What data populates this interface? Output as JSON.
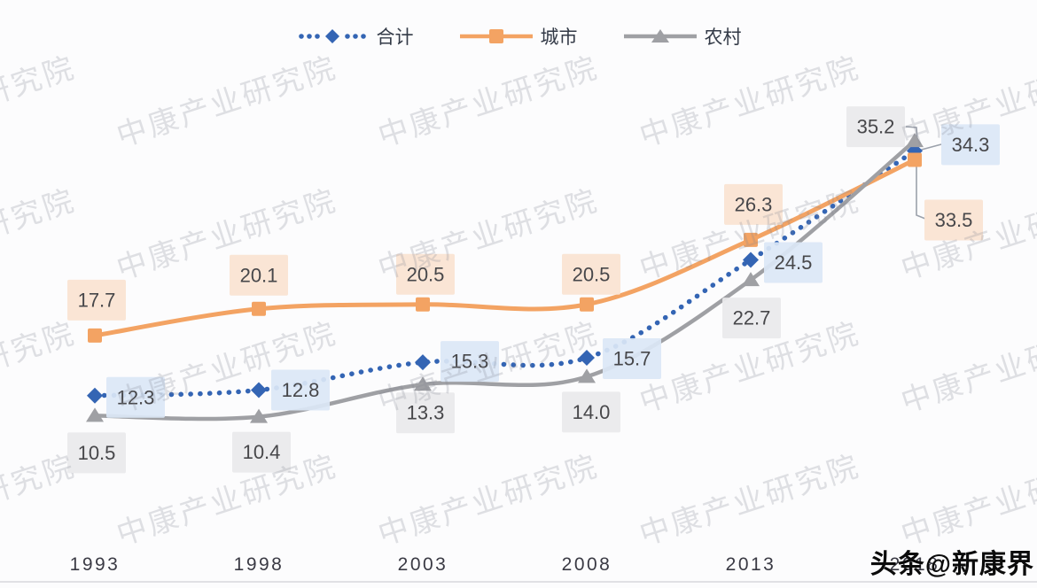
{
  "chart_data": {
    "type": "line",
    "title": "",
    "categories": [
      "1993",
      "1998",
      "2003",
      "2008",
      "2013",
      "2018"
    ],
    "series": [
      {
        "key": "total",
        "name": "合计",
        "color": "#3465b4",
        "marker": "diamond",
        "line_style": "dotted",
        "label_bg": "#dbe7f6",
        "values": [
          12.3,
          12.8,
          15.3,
          15.7,
          24.5,
          34.3
        ]
      },
      {
        "key": "urban",
        "name": "城市",
        "color": "#f3a363",
        "marker": "square",
        "line_style": "solid",
        "label_bg": "#fae3d1",
        "values": [
          17.7,
          20.1,
          20.5,
          20.5,
          26.3,
          33.5
        ]
      },
      {
        "key": "rural",
        "name": "农村",
        "color": "#9fa0a4",
        "marker": "triangle",
        "line_style": "solid",
        "label_bg": "#e9e9eb",
        "values": [
          10.5,
          10.4,
          13.3,
          14.0,
          22.7,
          35.2
        ]
      }
    ],
    "legend_position": "top-center",
    "grid": false,
    "data_labels": true,
    "label_text_color": "#47474a",
    "xlabel": "",
    "ylabel": "",
    "ylim": [
      8,
      38
    ],
    "label_offsets": [
      [
        [
          46,
          2
        ],
        [
          47,
          0
        ],
        [
          53,
          -1
        ],
        [
          51,
          1
        ],
        [
          48,
          3
        ],
        [
          63,
          -7
        ]
      ],
      [
        [
          2,
          -40
        ],
        [
          0,
          -38
        ],
        [
          3,
          -34
        ],
        [
          5,
          -34
        ],
        [
          3,
          -40
        ],
        [
          44,
          68
        ]
      ],
      [
        [
          2,
          42
        ],
        [
          3,
          40
        ],
        [
          3,
          32
        ],
        [
          5,
          40
        ],
        [
          1,
          43
        ],
        [
          -44,
          -16
        ]
      ]
    ]
  },
  "axis": {
    "line_color": "#e0e0e4",
    "tick_color": "#3a3a44"
  },
  "watermark": {
    "text": "中康产业研究院",
    "color": "rgba(128,132,148,0.24)"
  },
  "overlay": {
    "text": "头条@新康界",
    "color": "#0b0b0b"
  }
}
